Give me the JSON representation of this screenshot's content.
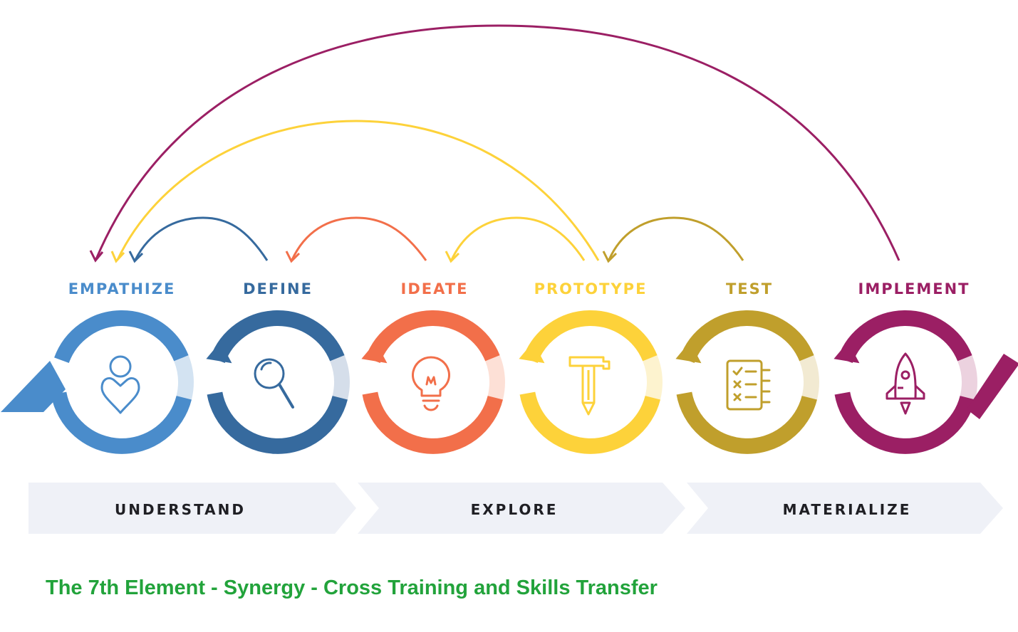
{
  "stages": [
    {
      "label": "EMPATHIZE",
      "color": "#4a8ccb",
      "light": "#d3e3f2",
      "icon": "person-heart-icon",
      "name": "empathize"
    },
    {
      "label": "DEFINE",
      "color": "#366a9e",
      "light": "#d5deea",
      "icon": "magnifier-icon",
      "name": "define"
    },
    {
      "label": "IDEATE",
      "color": "#f26f4a",
      "light": "#fde0d6",
      "icon": "lightbulb-icon",
      "name": "ideate"
    },
    {
      "label": "PROTOTYPE",
      "color": "#fdd23a",
      "light": "#fdf3cf",
      "icon": "hammer-pencil-icon",
      "name": "prototype"
    },
    {
      "label": "TEST",
      "color": "#c09f2c",
      "light": "#f2ead2",
      "icon": "checklist-icon",
      "name": "test"
    },
    {
      "label": "IMPLEMENT",
      "color": "#9b1f64",
      "light": "#ecd2df",
      "icon": "rocket-icon",
      "name": "implement"
    }
  ],
  "phases": [
    {
      "label": "UNDERSTAND",
      "name": "understand"
    },
    {
      "label": "EXPLORE",
      "name": "explore"
    },
    {
      "label": "MATERIALIZE",
      "name": "materialize"
    }
  ],
  "phase_band_color": "#eff1f7",
  "caption": {
    "text": "The 7th Element - Synergy - Cross Training and Skills Transfer",
    "color": "#22a33b"
  }
}
